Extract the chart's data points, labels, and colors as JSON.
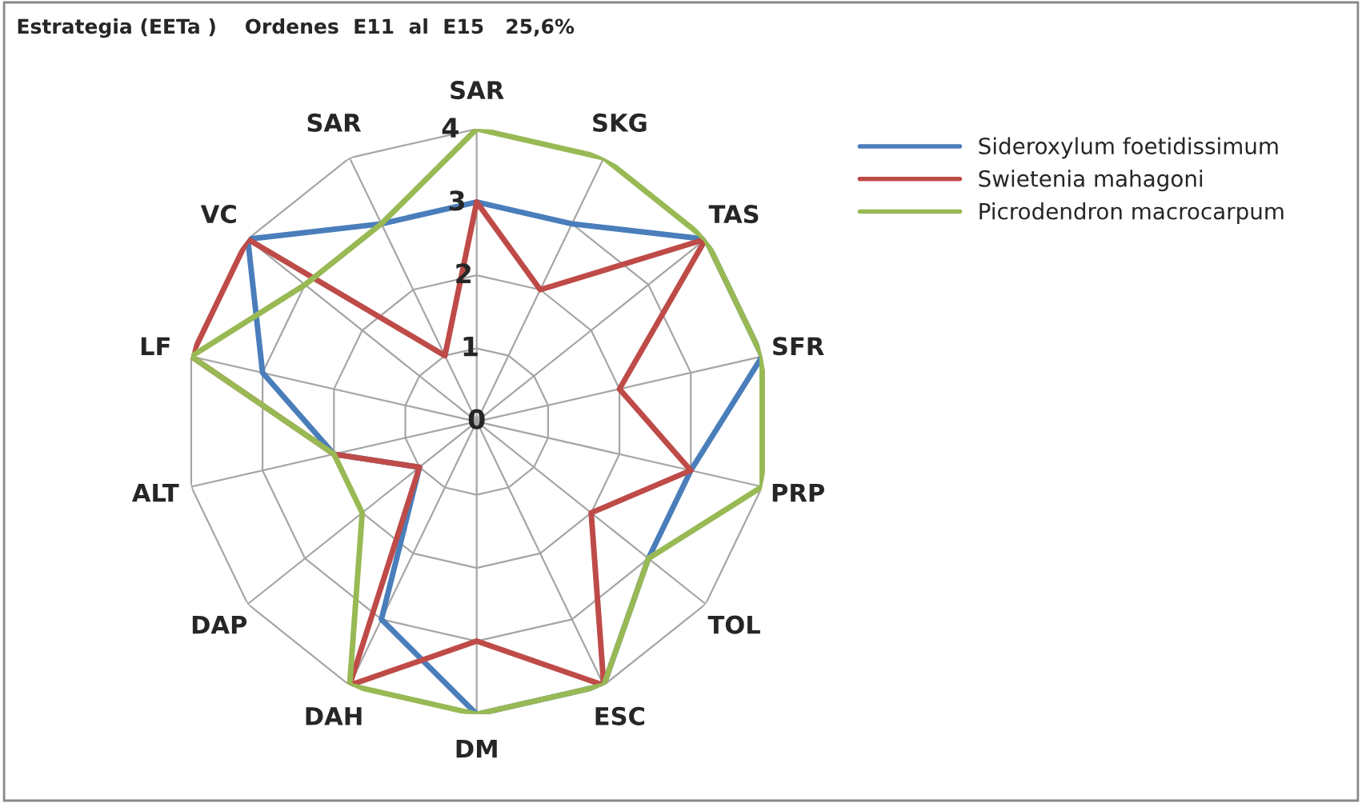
{
  "chart_data": {
    "type": "radar",
    "title": "Estrategia (EETa )    Ordenes  E11  al  E15   25,6%",
    "categories": [
      "SAR",
      "SKG",
      "TAS",
      "SFR",
      "PRP",
      "TOL",
      "ESC",
      "DM",
      "DAH",
      "DAP",
      "ALT",
      "LF",
      "VC",
      "SAR"
    ],
    "series": [
      {
        "name": "Sideroxylum foetidissimum",
        "color": "#4a7ebb",
        "values": [
          3,
          3,
          4,
          4,
          3,
          3,
          4,
          4,
          3,
          1,
          2,
          3,
          4,
          3
        ]
      },
      {
        "name": "Swietenia mahagoni",
        "color": "#be4b48",
        "values": [
          3,
          2,
          4,
          2,
          3,
          2,
          4,
          3,
          4,
          1,
          2,
          4,
          4,
          1
        ]
      },
      {
        "name": "Picrodendron macrocarpum",
        "color": "#98b954",
        "values": [
          4,
          4,
          4,
          4,
          4,
          3,
          4,
          4,
          4,
          2,
          2,
          4,
          3,
          3
        ]
      }
    ],
    "ylim": [
      0,
      4
    ],
    "yticks": [
      0,
      1,
      2,
      3,
      4
    ],
    "grid": true,
    "legend": "right",
    "marker": "none",
    "line_style": "solid"
  }
}
